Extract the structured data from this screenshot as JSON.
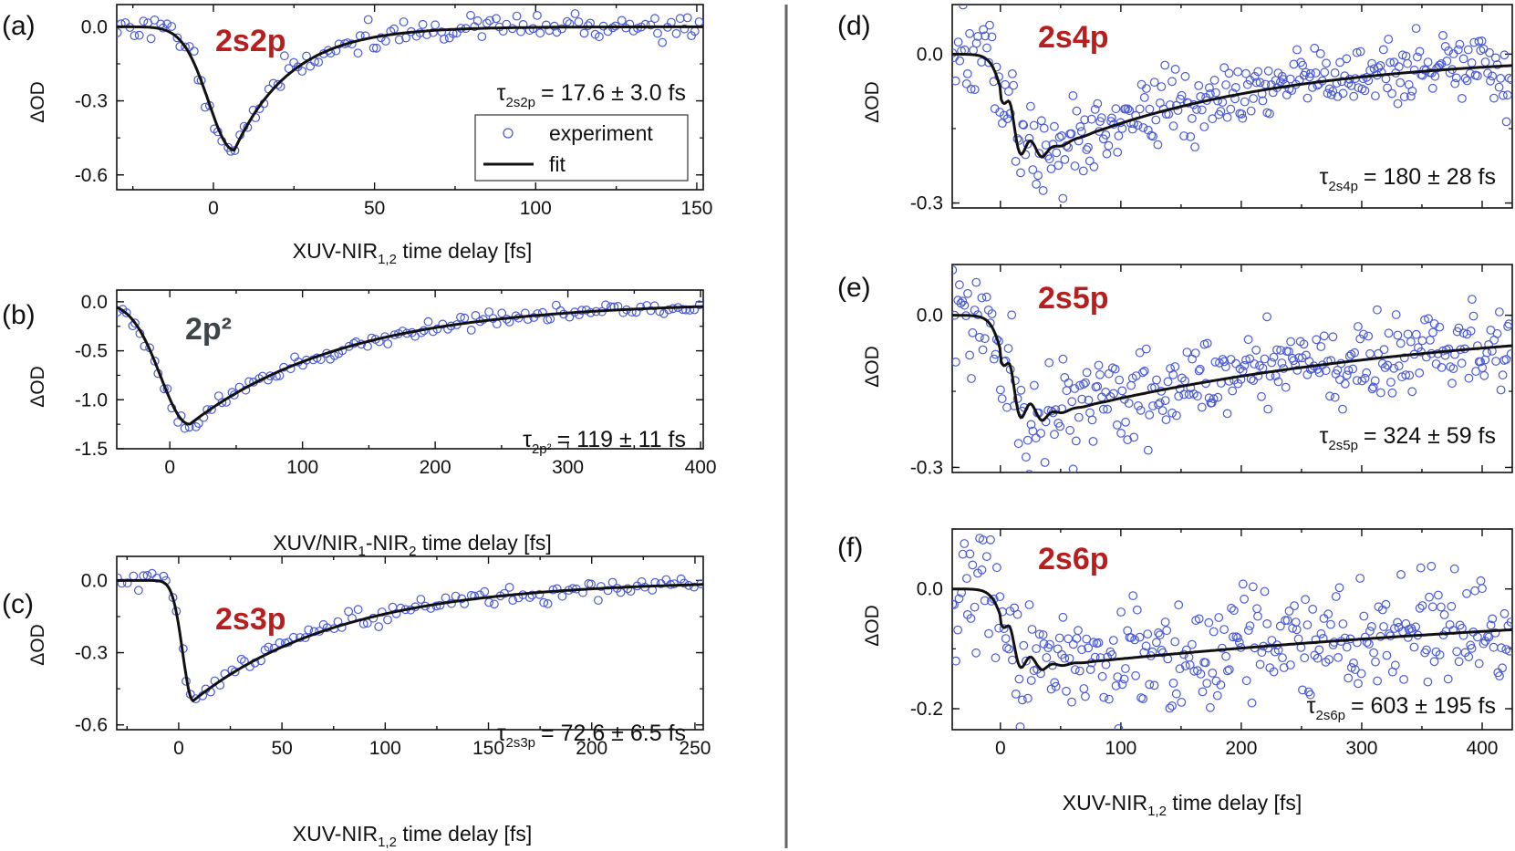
{
  "colors": {
    "marker": "#4a5ad8",
    "fit": "#111111",
    "axis": "#111111",
    "tag_red": "#b81e1e",
    "tag_gray": "#3d4548",
    "divider": "#666666"
  },
  "chart_data": [
    {
      "id": "a",
      "type": "scatter",
      "panel_label": "(a)",
      "tag": "2s2p",
      "tag_color": "red",
      "tau": {
        "prefix": "τ",
        "sub": "2s2p",
        "value": "= 17.6 ± 3.0 fs"
      },
      "xlabel": {
        "main": "XUV-NIR",
        "sub": "1,2",
        "post": " time delay [fs]"
      },
      "ylabel": "ΔOD",
      "xlim": [
        -30,
        152
      ],
      "ylim": [
        -0.66,
        0.09
      ],
      "xticks": [
        0,
        50,
        100,
        150
      ],
      "yticks": [
        0.0,
        -0.3,
        -0.6
      ],
      "ytick_labels": [
        "0.0",
        "-0.3",
        "-0.6"
      ],
      "model": {
        "kind": "gauss",
        "amp": -0.5,
        "t0": 6.5,
        "rise": 8,
        "tau": 17.6
      },
      "legend": {
        "experiment": "experiment",
        "fit": "fit"
      },
      "series": [
        {
          "name": "experiment",
          "noise": 0.025,
          "count": 140,
          "seed": 11
        },
        {
          "name": "fit"
        }
      ]
    },
    {
      "id": "b",
      "type": "scatter",
      "panel_label": "(b)",
      "tag": "2p²",
      "tag_color": "gray",
      "tau": {
        "prefix": "τ",
        "sub": "2p²",
        "value": "= 119 ± 11 fs"
      },
      "xlabel": {
        "main": "XUV/NIR",
        "sub": "1",
        "mid": "-NIR",
        "sub2": "2",
        "post": " time delay [fs]"
      },
      "ylabel": "ΔOD",
      "xlim": [
        -40,
        402
      ],
      "ylim": [
        -1.5,
        0.12
      ],
      "xticks": [
        0,
        100,
        200,
        300,
        400
      ],
      "yticks": [
        0.0,
        -0.5,
        -1.0,
        -1.5
      ],
      "ytick_labels": [
        "0.0",
        "-0.5",
        "-1.0",
        "-1.5"
      ],
      "model": {
        "kind": "gauss",
        "amp": -1.25,
        "t0": 15,
        "rise": 22,
        "tau": 119
      },
      "series": [
        {
          "name": "experiment",
          "noise": 0.035,
          "count": 130,
          "seed": 23
        },
        {
          "name": "fit"
        }
      ]
    },
    {
      "id": "c",
      "type": "scatter",
      "panel_label": "(c)",
      "tag": "2s3p",
      "tag_color": "red",
      "tau": {
        "prefix": "τ",
        "sub": "2s3p",
        "value": "= 72.6 ± 6.5 fs"
      },
      "xlabel": {
        "main": "XUV-NIR",
        "sub": "1,2",
        "post": " time delay [fs]"
      },
      "ylabel": "ΔOD",
      "xlim": [
        -30,
        254
      ],
      "ylim": [
        -0.62,
        0.1
      ],
      "xticks": [
        0,
        50,
        100,
        150,
        200,
        250
      ],
      "yticks": [
        0.0,
        -0.3,
        -0.6
      ],
      "ytick_labels": [
        "0.0",
        "-0.3",
        "-0.6"
      ],
      "model": {
        "kind": "gauss",
        "amp": -0.5,
        "t0": 7,
        "rise": 5,
        "tau": 72.6
      },
      "series": [
        {
          "name": "experiment",
          "noise": 0.02,
          "count": 120,
          "seed": 37
        },
        {
          "name": "fit"
        }
      ]
    },
    {
      "id": "d",
      "type": "scatter",
      "panel_label": "(d)",
      "tag": "2s4p",
      "tag_color": "red",
      "tau": {
        "prefix": "τ",
        "sub": "2s4p",
        "value": "= 180 ± 28 fs"
      },
      "xlabel": null,
      "ylabel": "ΔOD",
      "xlim": [
        -40,
        425
      ],
      "ylim": [
        -0.31,
        0.1
      ],
      "xticks": [
        0,
        100,
        200,
        300,
        400
      ],
      "yticks": [
        0.0,
        -0.3
      ],
      "ytick_labels": [
        "0.0",
        "-0.3"
      ],
      "model": {
        "kind": "osc",
        "amp": -0.2,
        "rise": 5,
        "tau": 180
      },
      "series": [
        {
          "name": "experiment",
          "noise": 0.035,
          "count": 330,
          "seed": 41
        },
        {
          "name": "fit"
        }
      ]
    },
    {
      "id": "e",
      "type": "scatter",
      "panel_label": "(e)",
      "tag": "2s5p",
      "tag_color": "red",
      "tau": {
        "prefix": "τ",
        "sub": "2s5p",
        "value": "= 324 ± 59 fs"
      },
      "xlabel": null,
      "ylabel": "ΔOD",
      "xlim": [
        -40,
        425
      ],
      "ylim": [
        -0.31,
        0.1
      ],
      "xticks": [
        0,
        100,
        200,
        300,
        400
      ],
      "yticks": [
        0.0,
        -0.3
      ],
      "ytick_labels": [
        "0.0",
        "-0.3"
      ],
      "model": {
        "kind": "osc",
        "amp": -0.2,
        "rise": 5,
        "tau": 324
      },
      "series": [
        {
          "name": "experiment",
          "noise": 0.04,
          "count": 330,
          "seed": 53
        },
        {
          "name": "fit"
        }
      ]
    },
    {
      "id": "f",
      "type": "scatter",
      "panel_label": "(f)",
      "tag": "2s6p",
      "tag_color": "red",
      "tau": {
        "prefix": "τ",
        "sub": "2s6p",
        "value": "= 603 ± 195 fs"
      },
      "xlabel": {
        "main": "XUV-NIR",
        "sub": "1,2",
        "post": " time delay [fs]"
      },
      "ylabel": "ΔOD",
      "xlim": [
        -40,
        425
      ],
      "ylim": [
        -0.235,
        0.1
      ],
      "xticks": [
        0,
        100,
        200,
        300,
        400
      ],
      "yticks": [
        0.0,
        -0.2
      ],
      "ytick_labels": [
        "0.0",
        "-0.2"
      ],
      "model": {
        "kind": "osc",
        "amp": -0.13,
        "rise": 5,
        "tau": 603
      },
      "series": [
        {
          "name": "experiment",
          "noise": 0.04,
          "count": 330,
          "seed": 67
        },
        {
          "name": "fit"
        }
      ]
    }
  ]
}
